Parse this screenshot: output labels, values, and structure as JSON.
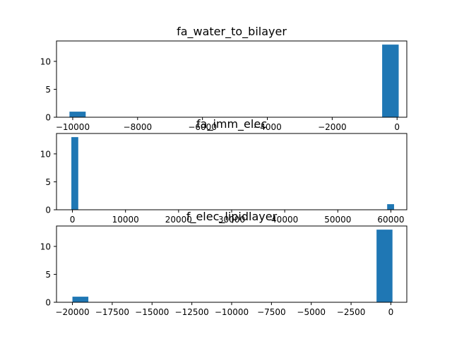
{
  "chart_data": [
    {
      "type": "bar",
      "title": "fa_water_to_bilayer",
      "bar_color": "#1f77b4",
      "xlim": [
        -10500,
        300
      ],
      "ylim": [
        0,
        13.65
      ],
      "xticks": [
        -10000,
        -8000,
        -6000,
        -4000,
        -2000,
        0
      ],
      "xtick_labels": [
        "−10000",
        "−8000",
        "−6000",
        "−4000",
        "−2000",
        "0"
      ],
      "yticks": [
        0,
        5,
        10
      ],
      "ytick_labels": [
        "0",
        "5",
        "10"
      ],
      "bins": [
        {
          "x0": -10100,
          "x1": -9600,
          "count": 1
        },
        {
          "x0": -460,
          "x1": 50,
          "count": 13
        }
      ]
    },
    {
      "type": "bar",
      "title": "fa_imm_elec",
      "bar_color": "#1f77b4",
      "xlim": [
        -3000,
        63000
      ],
      "ylim": [
        0,
        13.65
      ],
      "xticks": [
        0,
        10000,
        20000,
        30000,
        40000,
        50000,
        60000
      ],
      "xtick_labels": [
        "0",
        "10000",
        "20000",
        "30000",
        "40000",
        "50000",
        "60000"
      ],
      "yticks": [
        0,
        5,
        10
      ],
      "ytick_labels": [
        "0",
        "5",
        "10"
      ],
      "bins": [
        {
          "x0": -200,
          "x1": 1100,
          "count": 13
        },
        {
          "x0": 59300,
          "x1": 60600,
          "count": 1
        }
      ]
    },
    {
      "type": "bar",
      "title": "f_elec_lipidlayer",
      "bar_color": "#1f77b4",
      "xlim": [
        -21000,
        1000
      ],
      "ylim": [
        0,
        13.65
      ],
      "xticks": [
        -20000,
        -17500,
        -15000,
        -12500,
        -10000,
        -7500,
        -5000,
        -2500,
        0
      ],
      "xtick_labels": [
        "−20000",
        "−17500",
        "−15000",
        "−12500",
        "−10000",
        "−7500",
        "−5000",
        "−2500",
        "0"
      ],
      "yticks": [
        0,
        5,
        10
      ],
      "ytick_labels": [
        "0",
        "5",
        "10"
      ],
      "bins": [
        {
          "x0": -20000,
          "x1": -19000,
          "count": 1
        },
        {
          "x0": -900,
          "x1": 100,
          "count": 13
        }
      ]
    }
  ]
}
